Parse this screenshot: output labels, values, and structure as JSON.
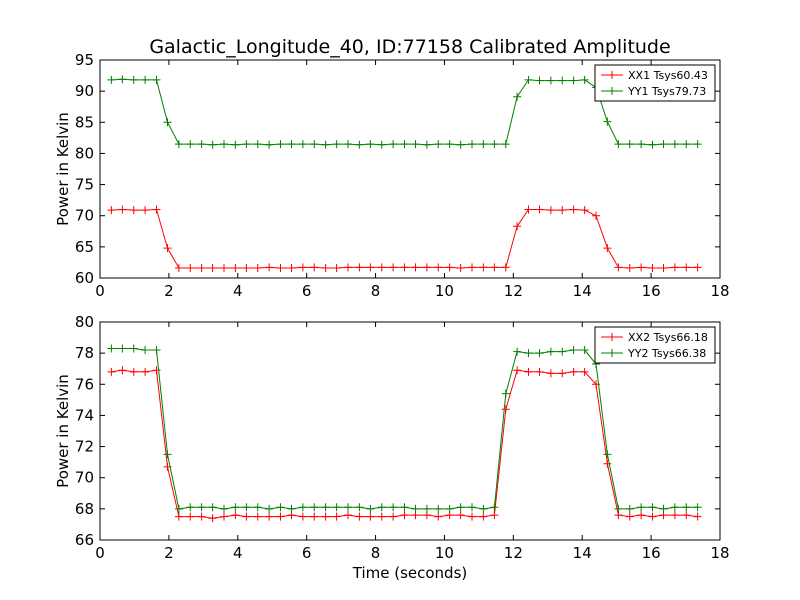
{
  "figure": {
    "title": "Galactic_Longitude_40, ID:77158 Calibrated Amplitude"
  },
  "chart_data": [
    {
      "type": "line",
      "xlabel": "",
      "ylabel": "Power in Kelvin",
      "xlim": [
        0,
        18
      ],
      "ylim": [
        60,
        95
      ],
      "xticks": [
        0,
        2,
        4,
        6,
        8,
        10,
        12,
        14,
        16,
        18
      ],
      "yticks": [
        60,
        65,
        70,
        75,
        80,
        85,
        90,
        95
      ],
      "grid": false,
      "legend_position": "top-right",
      "x": [
        0.33,
        0.65,
        0.98,
        1.31,
        1.64,
        1.96,
        2.29,
        2.62,
        2.95,
        3.27,
        3.6,
        3.93,
        4.25,
        4.58,
        4.91,
        5.24,
        5.56,
        5.89,
        6.22,
        6.55,
        6.87,
        7.2,
        7.53,
        7.85,
        8.18,
        8.51,
        8.84,
        9.16,
        9.49,
        9.82,
        10.15,
        10.47,
        10.8,
        11.13,
        11.45,
        11.78,
        12.11,
        12.44,
        12.76,
        13.09,
        13.42,
        13.75,
        14.07,
        14.4,
        14.73,
        15.05,
        15.38,
        15.71,
        16.04,
        16.36,
        16.69,
        17.02,
        17.35
      ],
      "series": [
        {
          "name": "XX1 Tsys60.43",
          "color": "#ff0000",
          "values": [
            70.9,
            71.0,
            70.9,
            70.9,
            71.0,
            64.8,
            61.6,
            61.6,
            61.6,
            61.6,
            61.6,
            61.6,
            61.6,
            61.6,
            61.7,
            61.6,
            61.6,
            61.7,
            61.7,
            61.6,
            61.6,
            61.7,
            61.7,
            61.7,
            61.7,
            61.7,
            61.7,
            61.7,
            61.7,
            61.7,
            61.7,
            61.6,
            61.7,
            61.7,
            61.7,
            61.7,
            68.3,
            71.0,
            71.0,
            70.9,
            70.9,
            71.0,
            70.9,
            70.0,
            64.8,
            61.7,
            61.6,
            61.7,
            61.6,
            61.6,
            61.7,
            61.7,
            61.7
          ]
        },
        {
          "name": "YY1 Tsys79.73",
          "color": "#008000",
          "values": [
            91.8,
            91.9,
            91.8,
            91.8,
            91.8,
            85.0,
            81.5,
            81.5,
            81.5,
            81.4,
            81.5,
            81.4,
            81.5,
            81.5,
            81.4,
            81.5,
            81.5,
            81.5,
            81.5,
            81.4,
            81.5,
            81.5,
            81.4,
            81.5,
            81.4,
            81.5,
            81.5,
            81.5,
            81.4,
            81.5,
            81.5,
            81.4,
            81.5,
            81.5,
            81.5,
            81.5,
            89.1,
            91.8,
            91.7,
            91.7,
            91.7,
            91.7,
            91.8,
            90.6,
            85.1,
            81.5,
            81.5,
            81.5,
            81.4,
            81.5,
            81.5,
            81.5,
            81.5
          ]
        }
      ]
    },
    {
      "type": "line",
      "xlabel": "Time (seconds)",
      "ylabel": "Power in Kelvin",
      "xlim": [
        0,
        18
      ],
      "ylim": [
        66,
        80
      ],
      "xticks": [
        0,
        2,
        4,
        6,
        8,
        10,
        12,
        14,
        16,
        18
      ],
      "yticks": [
        66,
        68,
        70,
        72,
        74,
        76,
        78,
        80
      ],
      "grid": false,
      "legend_position": "top-right",
      "x": [
        0.33,
        0.65,
        0.98,
        1.31,
        1.64,
        1.96,
        2.29,
        2.62,
        2.95,
        3.27,
        3.6,
        3.93,
        4.25,
        4.58,
        4.91,
        5.24,
        5.56,
        5.89,
        6.22,
        6.55,
        6.87,
        7.2,
        7.53,
        7.85,
        8.18,
        8.51,
        8.84,
        9.16,
        9.49,
        9.82,
        10.15,
        10.47,
        10.8,
        11.13,
        11.45,
        11.78,
        12.11,
        12.44,
        12.76,
        13.09,
        13.42,
        13.75,
        14.07,
        14.4,
        14.73,
        15.05,
        15.38,
        15.71,
        16.04,
        16.36,
        16.69,
        17.02,
        17.35
      ],
      "series": [
        {
          "name": "XX2 Tsys66.18",
          "color": "#ff0000",
          "values": [
            76.8,
            76.9,
            76.8,
            76.8,
            76.9,
            70.7,
            67.5,
            67.5,
            67.5,
            67.4,
            67.5,
            67.6,
            67.5,
            67.5,
            67.5,
            67.5,
            67.6,
            67.5,
            67.5,
            67.5,
            67.5,
            67.6,
            67.5,
            67.5,
            67.5,
            67.5,
            67.6,
            67.6,
            67.6,
            67.5,
            67.6,
            67.6,
            67.5,
            67.5,
            67.6,
            74.4,
            76.9,
            76.8,
            76.8,
            76.7,
            76.7,
            76.8,
            76.8,
            76.0,
            70.9,
            67.6,
            67.5,
            67.6,
            67.5,
            67.6,
            67.6,
            67.6,
            67.5
          ]
        },
        {
          "name": "YY2 Tsys66.38",
          "color": "#008000",
          "values": [
            78.3,
            78.3,
            78.3,
            78.2,
            78.2,
            71.5,
            68.0,
            68.1,
            68.1,
            68.1,
            68.0,
            68.1,
            68.1,
            68.1,
            68.0,
            68.1,
            68.0,
            68.1,
            68.1,
            68.1,
            68.1,
            68.1,
            68.1,
            68.0,
            68.1,
            68.1,
            68.1,
            68.0,
            68.0,
            68.0,
            68.0,
            68.1,
            68.1,
            68.0,
            68.1,
            75.4,
            78.1,
            78.0,
            78.0,
            78.1,
            78.1,
            78.2,
            78.2,
            77.3,
            71.5,
            68.0,
            68.0,
            68.1,
            68.1,
            68.0,
            68.1,
            68.1,
            68.1
          ]
        }
      ]
    }
  ]
}
